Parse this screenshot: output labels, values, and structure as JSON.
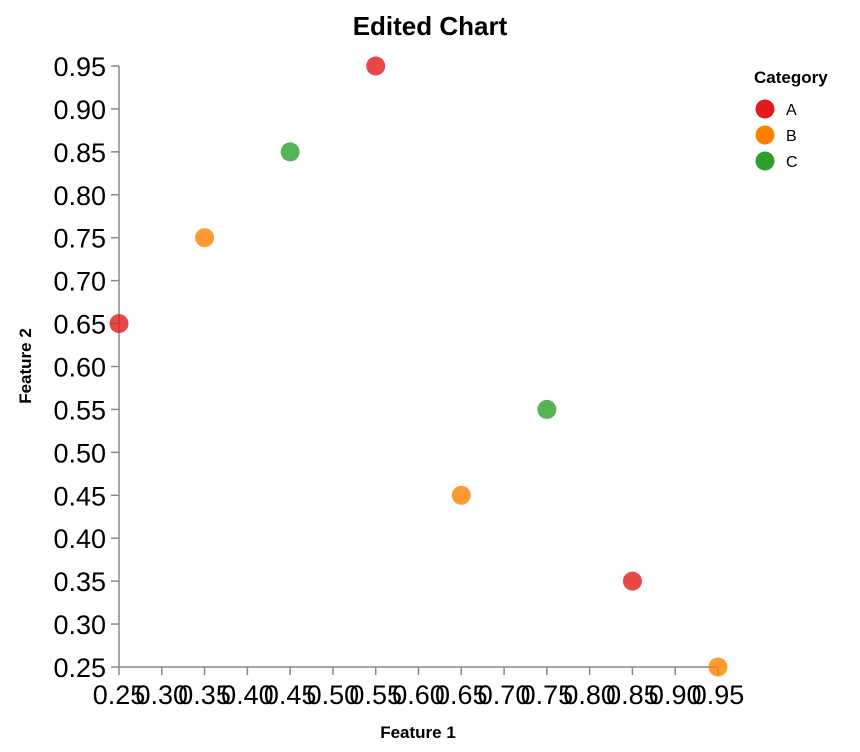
{
  "chart_data": {
    "type": "scatter",
    "title": "Edited Chart",
    "xlabel": "Feature 1",
    "ylabel": "Feature 2",
    "xlim": [
      0.25,
      0.95
    ],
    "ylim": [
      0.25,
      0.95
    ],
    "x_ticks": [
      "0.25",
      "0.30",
      "0.35",
      "0.40",
      "0.45",
      "0.50",
      "0.55",
      "0.60",
      "0.65",
      "0.70",
      "0.75",
      "0.80",
      "0.85",
      "0.90",
      "0.95"
    ],
    "y_ticks": [
      "0.95",
      "0.90",
      "0.85",
      "0.80",
      "0.75",
      "0.70",
      "0.65",
      "0.60",
      "0.55",
      "0.50",
      "0.45",
      "0.40",
      "0.35",
      "0.30",
      "0.25"
    ],
    "grid": false,
    "legend": {
      "title": "Category",
      "placement": "top-right",
      "entries": [
        {
          "label": "A",
          "color": "#e41a1c"
        },
        {
          "label": "B",
          "color": "#ff7f00"
        },
        {
          "label": "C",
          "color": "#2ca02c"
        }
      ]
    },
    "points": [
      {
        "x": 0.25,
        "y": 0.65,
        "category": "A"
      },
      {
        "x": 0.35,
        "y": 0.75,
        "category": "B"
      },
      {
        "x": 0.45,
        "y": 0.85,
        "category": "C"
      },
      {
        "x": 0.55,
        "y": 0.95,
        "category": "A"
      },
      {
        "x": 0.65,
        "y": 0.45,
        "category": "B"
      },
      {
        "x": 0.75,
        "y": 0.55,
        "category": "C"
      },
      {
        "x": 0.85,
        "y": 0.35,
        "category": "A"
      },
      {
        "x": 0.95,
        "y": 0.25,
        "category": "B"
      }
    ]
  }
}
